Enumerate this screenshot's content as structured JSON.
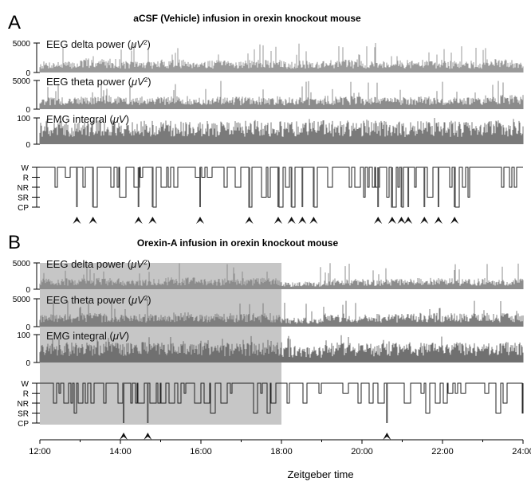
{
  "chart_data": [
    {
      "panel": "A",
      "type": "line",
      "title": "aCSF (Vehicle) infusion in orexin knockout mouse",
      "x_range": [
        "12:00",
        "24:00"
      ],
      "infusion_period": null,
      "tracks": [
        {
          "id": "delta",
          "label": "EEG delta power (μV²)",
          "label_main": "EEG delta power (",
          "label_unit": "μV",
          "label_sup": "2",
          "label_close": ")",
          "yticks": [
            "5000",
            "0"
          ],
          "ylim": [
            0,
            5000
          ],
          "baseline": [
            1200,
            1500,
            1250,
            1400,
            1300,
            1350,
            1250,
            1400,
            1300,
            1350,
            1250,
            1450
          ],
          "color": "#9a9a9a"
        },
        {
          "id": "theta",
          "label": "EEG theta power (μV²)",
          "label_main": "EEG theta power (",
          "label_unit": "μV",
          "label_sup": "2",
          "label_close": ")",
          "yticks": [
            "5000",
            "0"
          ],
          "ylim": [
            0,
            5000
          ],
          "baseline": [
            1300,
            1500,
            1400,
            1450,
            1350,
            1400,
            1300,
            1450,
            1350,
            1400,
            1350,
            1550
          ],
          "color": "#8c8c8c"
        },
        {
          "id": "emg",
          "label": "EMG integral (μV)",
          "label_main": "EMG integral (",
          "label_unit": "μV",
          "label_sup": "",
          "label_close": ")",
          "yticks": [
            "100",
            "0"
          ],
          "ylim": [
            0,
            100
          ],
          "baseline": [
            55,
            58,
            56,
            57,
            55,
            56,
            55,
            57,
            56,
            55,
            56,
            57
          ],
          "color": "#7a7a7a"
        }
      ],
      "hypnogram": {
        "states": [
          "W",
          "R",
          "NR",
          "SR",
          "CP"
        ],
        "cataplexy_times": [
          12.92,
          13.32,
          14.45,
          14.8,
          15.98,
          17.2,
          17.92,
          18.25,
          18.52,
          18.8,
          20.4,
          20.75,
          20.98,
          21.15,
          21.55,
          21.9,
          22.3
        ]
      }
    },
    {
      "panel": "B",
      "type": "line",
      "title": "Orexin-A infusion in orexin knockout mouse",
      "x_range": [
        "12:00",
        "24:00"
      ],
      "infusion_period": [
        12,
        18
      ],
      "tracks": [
        {
          "id": "delta",
          "label": "EEG delta power (μV²)",
          "label_main": "EEG delta power (",
          "label_unit": "μV",
          "label_sup": "2",
          "label_close": ")",
          "yticks": [
            "5000",
            "0"
          ],
          "ylim": [
            0,
            5000
          ],
          "baseline": [
            1300,
            1350,
            1250,
            1400,
            1300,
            1350,
            900,
            1300,
            1250,
            1400,
            1300,
            1350
          ],
          "color": "#8c8c8c"
        },
        {
          "id": "theta",
          "label": "EEG theta power (μV²)",
          "label_main": "EEG theta power (",
          "label_unit": "μV",
          "label_sup": "2",
          "label_close": ")",
          "yticks": [
            "5000",
            "0"
          ],
          "ylim": [
            0,
            5000
          ],
          "baseline": [
            1500,
            1550,
            1450,
            1600,
            1500,
            1550,
            1000,
            1500,
            1450,
            1550,
            1500,
            1550
          ],
          "color": "#7e7e7e"
        },
        {
          "id": "emg",
          "label": "EMG integral (μV)",
          "label_main": "EMG integral (",
          "label_unit": "μV",
          "label_sup": "",
          "label_close": ")",
          "yticks": [
            "100",
            "0"
          ],
          "ylim": [
            0,
            100
          ],
          "baseline": [
            45,
            48,
            46,
            47,
            45,
            46,
            35,
            45,
            44,
            46,
            45,
            47
          ],
          "color": "#707070"
        }
      ],
      "hypnogram": {
        "states": [
          "W",
          "R",
          "NR",
          "SR",
          "CP"
        ],
        "cataplexy_times": [
          14.08,
          14.68,
          20.62
        ]
      }
    }
  ],
  "x_axis": {
    "label": "Zeitgeber time",
    "ticks": [
      "12:00",
      "14:00",
      "16:00",
      "18:00",
      "20:00",
      "22:00",
      "24:00"
    ],
    "range": [
      12,
      24
    ]
  },
  "colors": {
    "shade": "#c6c6c6",
    "hypnogram": "#222222",
    "arrow": "#111111"
  }
}
